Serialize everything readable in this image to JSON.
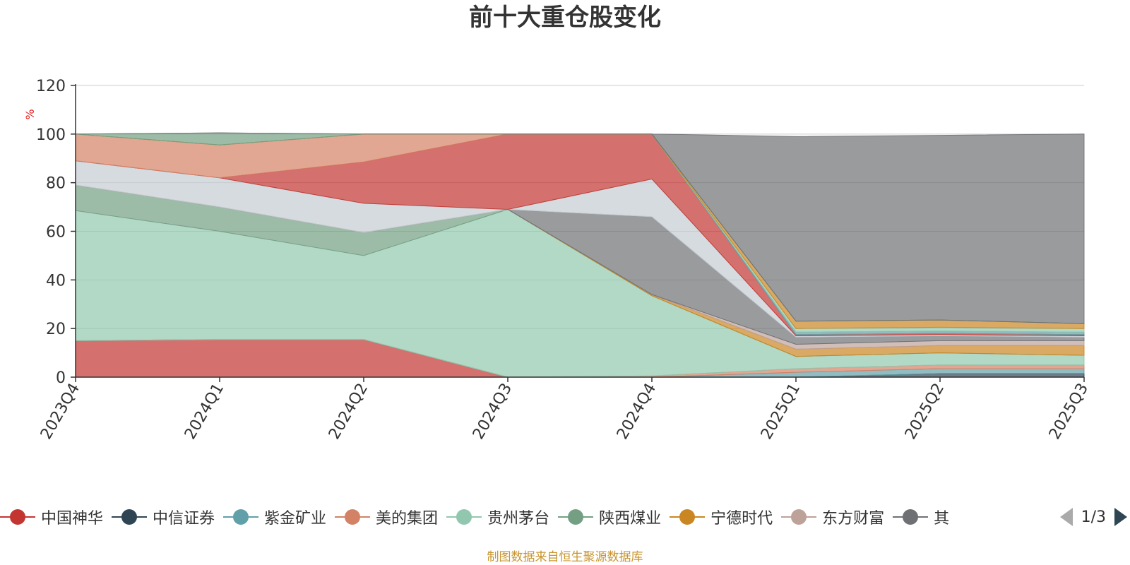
{
  "chart_data": {
    "type": "area",
    "stacked": true,
    "title": "前十大重仓股变化",
    "ylabel": "%",
    "ylim": [
      0,
      120
    ],
    "yticks": [
      0,
      20,
      40,
      60,
      80,
      100,
      120
    ],
    "categories": [
      "2023Q4",
      "2024Q1",
      "2024Q2",
      "2024Q3",
      "2024Q4",
      "2025Q1",
      "2025Q2",
      "2025Q3"
    ],
    "series": [
      {
        "name": "中国神华",
        "color": "#c23531",
        "values": [
          15,
          15.5,
          15.5,
          0,
          0,
          0,
          0,
          0
        ]
      },
      {
        "name": "中信证券",
        "color": "#2f4554",
        "values": [
          0,
          0,
          0,
          0,
          0,
          0,
          1.5,
          1.5
        ]
      },
      {
        "name": "紫金矿业",
        "color": "#61a0a8",
        "values": [
          0,
          0,
          0,
          0,
          0,
          2,
          2,
          2
        ]
      },
      {
        "name": "美的集团",
        "color": "#d48265",
        "values": [
          0,
          0,
          0,
          0,
          0.5,
          1.5,
          1.5,
          1.5
        ]
      },
      {
        "name": "贵州茅台",
        "color": "#91c7ae",
        "values": [
          53.5,
          44.5,
          34.5,
          69,
          33,
          5,
          5,
          4
        ]
      },
      {
        "name": "陕西煤业",
        "color": "#749f83",
        "values": [
          10.5,
          10,
          9.5,
          0,
          0,
          0,
          0,
          0
        ]
      },
      {
        "name": "宁德时代",
        "color": "#ca8622",
        "values": [
          0,
          0,
          0,
          0,
          0.5,
          3,
          3,
          4
        ]
      },
      {
        "name": "东方财富",
        "color": "#bda29a",
        "values": [
          0,
          0,
          0,
          0,
          0,
          2,
          2,
          2
        ]
      },
      {
        "name": "其他",
        "color": "#6e7074",
        "values": [
          0,
          0,
          0,
          0,
          32,
          3,
          2,
          1.5
        ]
      },
      {
        "name": "",
        "color": "#c4ccd3",
        "values": [
          10,
          12,
          12,
          0,
          15.5,
          0.5,
          0.5,
          0.5
        ]
      },
      {
        "name": "",
        "color": "#c23531",
        "values": [
          0,
          0,
          17,
          31,
          18.5,
          0.5,
          0.5,
          0.5
        ]
      },
      {
        "name": "",
        "color": "#d48265",
        "values": [
          11,
          13.5,
          11.5,
          0,
          0,
          0,
          0,
          0
        ]
      },
      {
        "name": "",
        "color": "#61a0a8",
        "values": [
          0,
          0,
          0,
          0,
          0,
          1,
          1,
          1
        ]
      },
      {
        "name": "",
        "color": "#91c7ae",
        "values": [
          0,
          0,
          0,
          0,
          0,
          1.5,
          1.5,
          1.5
        ]
      },
      {
        "name": "",
        "color": "#ca8622",
        "values": [
          0,
          0,
          0,
          0,
          0,
          3,
          3,
          2
        ]
      },
      {
        "name": "",
        "color": "#749f83",
        "values": [
          0,
          5,
          0,
          0,
          0,
          0,
          0,
          0
        ]
      },
      {
        "name": "",
        "color": "#6e7074",
        "values": [
          0,
          0,
          0,
          0,
          0,
          76,
          76,
          78
        ]
      }
    ],
    "legend_position": "bottom",
    "legend_visible_items": [
      "中国神华",
      "中信证券",
      "紫金矿业",
      "美的集团",
      "贵州茅台",
      "陕西煤业",
      "宁德时代",
      "东方财富",
      "其"
    ]
  },
  "legend": {
    "items": [
      {
        "label": "中国神华",
        "color": "#c23531"
      },
      {
        "label": "中信证券",
        "color": "#2f4554"
      },
      {
        "label": "紫金矿业",
        "color": "#61a0a8"
      },
      {
        "label": "美的集团",
        "color": "#d48265"
      },
      {
        "label": "贵州茅台",
        "color": "#91c7ae"
      },
      {
        "label": "陕西煤业",
        "color": "#749f83"
      },
      {
        "label": "宁德时代",
        "color": "#ca8622"
      },
      {
        "label": "东方财富",
        "color": "#bda29a"
      },
      {
        "label": "其",
        "color": "#6e7074"
      }
    ],
    "page_text": "1/3"
  },
  "footer": {
    "source": "制图数据来自恒生聚源数据库"
  }
}
